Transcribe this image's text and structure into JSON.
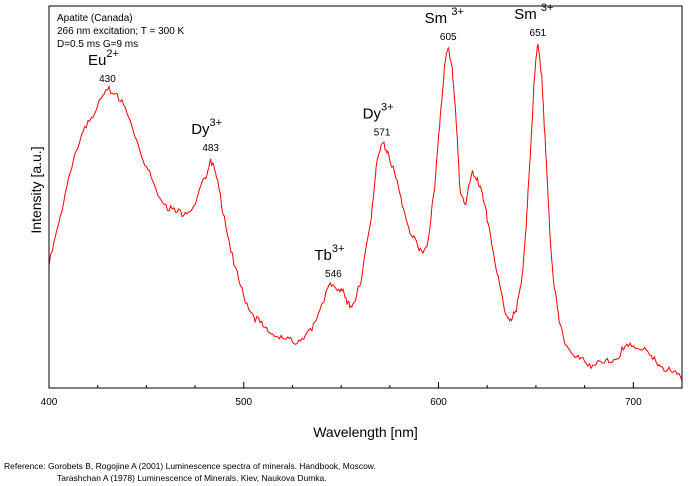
{
  "chart_data": {
    "type": "line",
    "xlabel": "Wavelength [nm]",
    "ylabel": "Intensity [a.u.]",
    "xlim": [
      400,
      725
    ],
    "ylim": [
      0,
      1
    ],
    "xticks": [
      400,
      500,
      600,
      700
    ],
    "grid": false,
    "info_lines": [
      "Apatite (Canada)",
      "266 nm excitation; T = 300 K",
      "D=0.5 ms G=9 ms"
    ],
    "series": [
      {
        "color": "#ff0000",
        "x": [
          400,
          405,
          410,
          415,
          420,
          425,
          430,
          435,
          440,
          445,
          450,
          455,
          460,
          465,
          470,
          475,
          480,
          483,
          486,
          490,
          495,
          500,
          505,
          510,
          515,
          520,
          525,
          530,
          535,
          540,
          543,
          546,
          550,
          553,
          556,
          560,
          565,
          568,
          571,
          574,
          578,
          582,
          586,
          590,
          594,
          598,
          601,
          603,
          605,
          607,
          609,
          611,
          614,
          617,
          620,
          623,
          626,
          630,
          634,
          637,
          640,
          643,
          645,
          647,
          649,
          651,
          653,
          655,
          657,
          659,
          662,
          666,
          670,
          675,
          680,
          685,
          690,
          695,
          700,
          705,
          710,
          715,
          720,
          725
        ],
        "y": [
          0.32,
          0.43,
          0.55,
          0.63,
          0.7,
          0.74,
          0.78,
          0.77,
          0.72,
          0.65,
          0.58,
          0.52,
          0.48,
          0.46,
          0.46,
          0.48,
          0.55,
          0.6,
          0.55,
          0.45,
          0.32,
          0.24,
          0.19,
          0.16,
          0.14,
          0.13,
          0.12,
          0.13,
          0.15,
          0.22,
          0.26,
          0.27,
          0.26,
          0.22,
          0.22,
          0.27,
          0.43,
          0.58,
          0.64,
          0.62,
          0.55,
          0.47,
          0.4,
          0.36,
          0.37,
          0.52,
          0.72,
          0.84,
          0.89,
          0.84,
          0.7,
          0.52,
          0.48,
          0.56,
          0.55,
          0.49,
          0.42,
          0.3,
          0.2,
          0.18,
          0.2,
          0.3,
          0.42,
          0.6,
          0.8,
          0.9,
          0.82,
          0.62,
          0.42,
          0.28,
          0.17,
          0.11,
          0.08,
          0.07,
          0.06,
          0.065,
          0.075,
          0.1,
          0.11,
          0.1,
          0.075,
          0.055,
          0.04,
          0.02
        ]
      }
    ],
    "annotations": [
      {
        "ion": "Eu",
        "charge": "2+",
        "wavelength": "430",
        "x": 430,
        "y": 0.78
      },
      {
        "ion": "Dy",
        "charge": "3+",
        "wavelength": "483",
        "x": 483,
        "y": 0.6
      },
      {
        "ion": "Tb",
        "charge": "3+",
        "wavelength": "546",
        "x": 546,
        "y": 0.27
      },
      {
        "ion": "Dy",
        "charge": "3+",
        "wavelength": "571",
        "x": 571,
        "y": 0.64
      },
      {
        "ion": "Sm ",
        "charge": "3+",
        "wavelength": "605",
        "x": 605,
        "y": 0.89
      },
      {
        "ion": "Sm ",
        "charge": "3+",
        "wavelength": "651",
        "x": 651,
        "y": 0.9
      }
    ]
  },
  "references": {
    "line1": "Reference: Gorobets B, Rogojine A (2001) Luminescence spectra of minerals. Handbook, Moscow.",
    "line2": "Tarashchan A (1978) Luminescence of Minerals. Kiev, Naukova Dumka."
  },
  "colors": {
    "series": "#ff0000",
    "axes": "#000000"
  }
}
